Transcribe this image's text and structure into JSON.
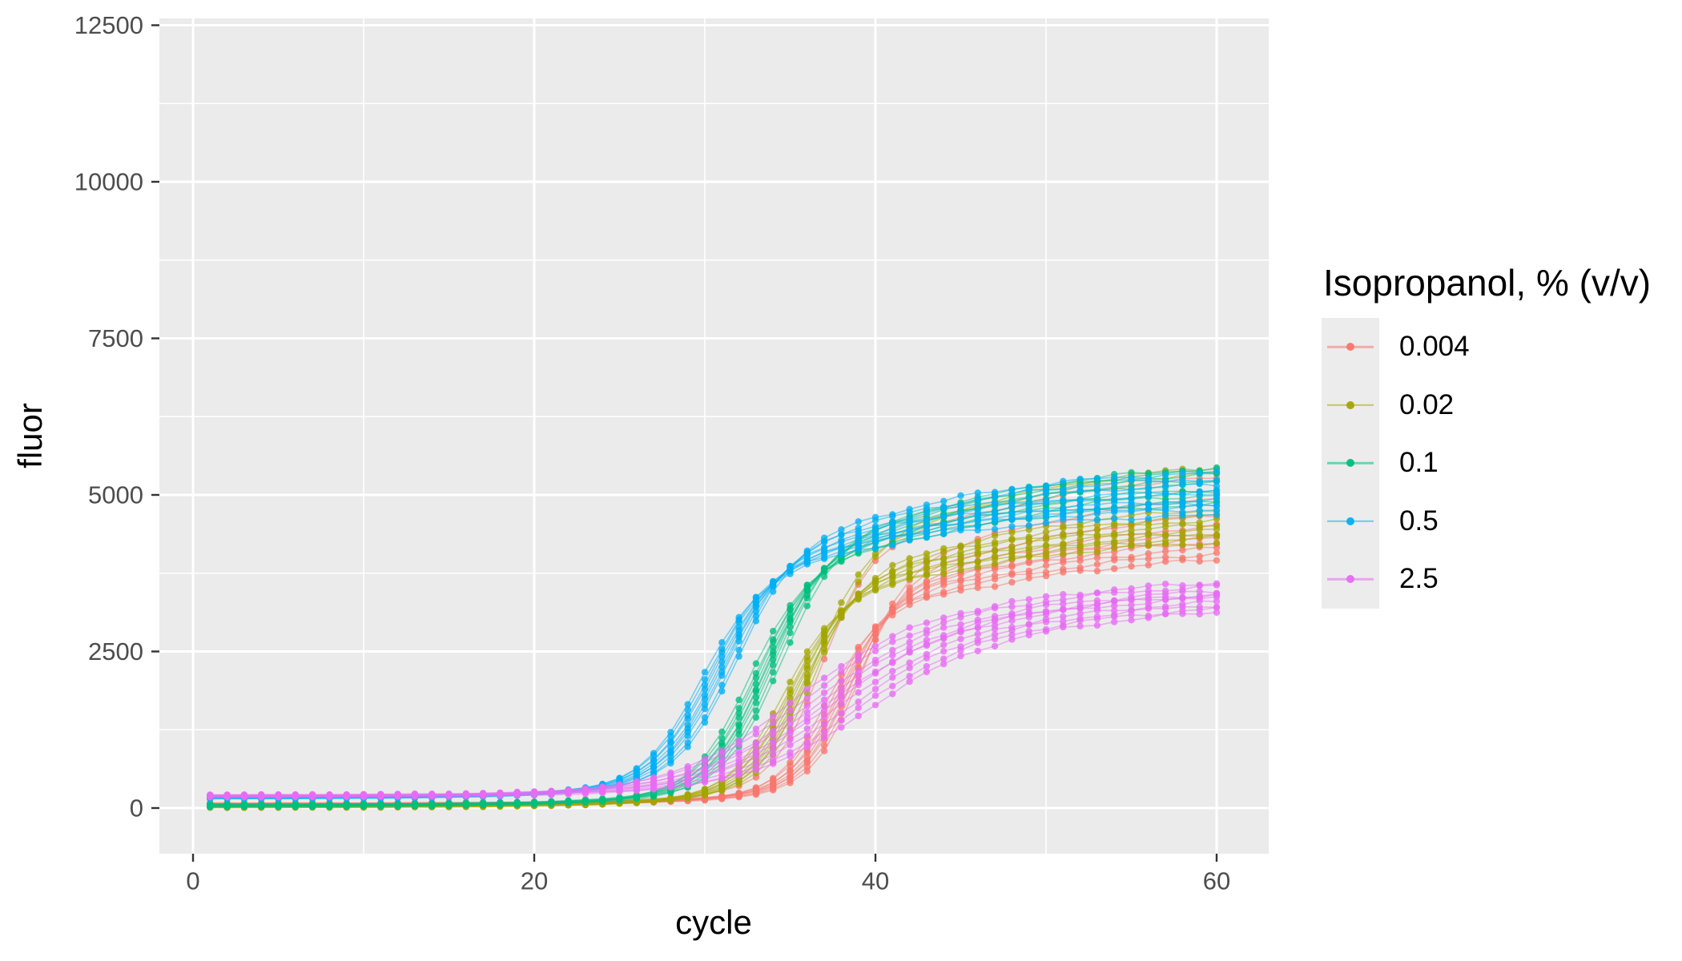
{
  "chart_data": {
    "type": "line",
    "title": "",
    "xlabel": "cycle",
    "ylabel": "fluor",
    "legend_title": "Isopropanol, % (v/v)",
    "legend_position": "right",
    "grid": true,
    "panel_background": "#EBEBEB",
    "grid_color": "#FFFFFF",
    "tick_label_color": "#4D4D4D",
    "tick_mark_color": "#333333",
    "x_range": [
      1,
      60
    ],
    "xlim": [
      -2,
      63
    ],
    "ylim": [
      -730,
      12610
    ],
    "x_ticks": [
      0,
      20,
      40,
      60
    ],
    "x_minor_ticks": [
      10,
      30,
      50
    ],
    "y_ticks": [
      0,
      2500,
      5000,
      7500,
      10000,
      12500
    ],
    "y_minor_ticks": [
      1250,
      3750,
      6250,
      8750,
      11250
    ],
    "model": {
      "description": "double-logistic qPCR amplification: fluor(c) = baseline + amplitude*(fast_fraction/(1+exp(-(c-midpoint)/rise_steepness)) + (1-fast_fraction)/(1+exp(-(c-midpoint-slow_mid_offset)/slow_steepness)))",
      "fast_fraction": 0.72
    },
    "series": [
      {
        "name": "0.004",
        "color": "#F8766D",
        "baseline": 60,
        "rise_steepness": 1.45,
        "slow_mid_offset": 8,
        "slow_steepness": 6,
        "replicates": [
          {
            "midpoint_cycle": 37.2,
            "plateau": 4050
          },
          {
            "midpoint_cycle": 37.5,
            "plateau": 4150
          },
          {
            "midpoint_cycle": 37.8,
            "plateau": 4250
          },
          {
            "midpoint_cycle": 38.0,
            "plateau": 4350
          },
          {
            "midpoint_cycle": 38.2,
            "plateau": 4420
          },
          {
            "midpoint_cycle": 38.4,
            "plateau": 4500
          },
          {
            "midpoint_cycle": 38.6,
            "plateau": 4620
          },
          {
            "midpoint_cycle": 38.9,
            "plateau": 4800
          },
          {
            "midpoint_cycle": 39.2,
            "plateau": 5100
          },
          {
            "midpoint_cycle": 36.9,
            "plateau": 5380
          }
        ]
      },
      {
        "name": "0.02",
        "color": "#A3A500",
        "baseline": 25,
        "rise_steepness": 1.6,
        "slow_mid_offset": 8,
        "slow_steepness": 6,
        "replicates": [
          {
            "midpoint_cycle": 34.6,
            "plateau": 4300
          },
          {
            "midpoint_cycle": 34.9,
            "plateau": 4380
          },
          {
            "midpoint_cycle": 35.1,
            "plateau": 4450
          },
          {
            "midpoint_cycle": 35.3,
            "plateau": 4520
          },
          {
            "midpoint_cycle": 35.5,
            "plateau": 4600
          },
          {
            "midpoint_cycle": 35.7,
            "plateau": 4680
          },
          {
            "midpoint_cycle": 35.9,
            "plateau": 4750
          },
          {
            "midpoint_cycle": 36.1,
            "plateau": 4850
          },
          {
            "midpoint_cycle": 36.4,
            "plateau": 5450
          },
          {
            "midpoint_cycle": 36.8,
            "plateau": 5550
          }
        ]
      },
      {
        "name": "0.1",
        "color": "#00BF7D",
        "baseline": 40,
        "rise_steepness": 1.65,
        "slow_mid_offset": 8,
        "slow_steepness": 6,
        "replicates": [
          {
            "midpoint_cycle": 32.6,
            "plateau": 4900
          },
          {
            "midpoint_cycle": 32.9,
            "plateau": 4950
          },
          {
            "midpoint_cycle": 33.1,
            "plateau": 5050
          },
          {
            "midpoint_cycle": 33.3,
            "plateau": 5100
          },
          {
            "midpoint_cycle": 33.5,
            "plateau": 5150
          },
          {
            "midpoint_cycle": 33.6,
            "plateau": 5250
          },
          {
            "midpoint_cycle": 33.8,
            "plateau": 5300
          },
          {
            "midpoint_cycle": 34.0,
            "plateau": 5400
          },
          {
            "midpoint_cycle": 34.2,
            "plateau": 5450
          },
          {
            "midpoint_cycle": 34.5,
            "plateau": 5500
          }
        ]
      },
      {
        "name": "0.5",
        "color": "#00B0F6",
        "baseline": 165,
        "rise_steepness": 1.75,
        "slow_mid_offset": 8,
        "slow_steepness": 6,
        "replicates": [
          {
            "midpoint_cycle": 29.8,
            "plateau": 4700
          },
          {
            "midpoint_cycle": 30.1,
            "plateau": 4800
          },
          {
            "midpoint_cycle": 30.3,
            "plateau": 4850
          },
          {
            "midpoint_cycle": 30.5,
            "plateau": 4900
          },
          {
            "midpoint_cycle": 30.7,
            "plateau": 4950
          },
          {
            "midpoint_cycle": 30.9,
            "plateau": 5050
          },
          {
            "midpoint_cycle": 31.1,
            "plateau": 5100
          },
          {
            "midpoint_cycle": 31.3,
            "plateau": 5200
          },
          {
            "midpoint_cycle": 31.6,
            "plateau": 5300
          },
          {
            "midpoint_cycle": 31.9,
            "plateau": 5400
          }
        ]
      },
      {
        "name": "2.5",
        "color": "#E76BF3",
        "baseline": 190,
        "rise_steepness": 3.4,
        "slow_mid_offset": 9,
        "slow_steepness": 7.5,
        "replicates": [
          {
            "midpoint_cycle": 35.0,
            "plateau": 3700
          },
          {
            "midpoint_cycle": 35.5,
            "plateau": 3650
          },
          {
            "midpoint_cycle": 36.0,
            "plateau": 3580
          },
          {
            "midpoint_cycle": 36.4,
            "plateau": 3520
          },
          {
            "midpoint_cycle": 36.8,
            "plateau": 3480
          },
          {
            "midpoint_cycle": 37.2,
            "plateau": 3550
          },
          {
            "midpoint_cycle": 37.6,
            "plateau": 3420
          },
          {
            "midpoint_cycle": 38.1,
            "plateau": 3380
          },
          {
            "midpoint_cycle": 38.6,
            "plateau": 3330
          },
          {
            "midpoint_cycle": 39.2,
            "plateau": 3280
          }
        ]
      }
    ]
  }
}
